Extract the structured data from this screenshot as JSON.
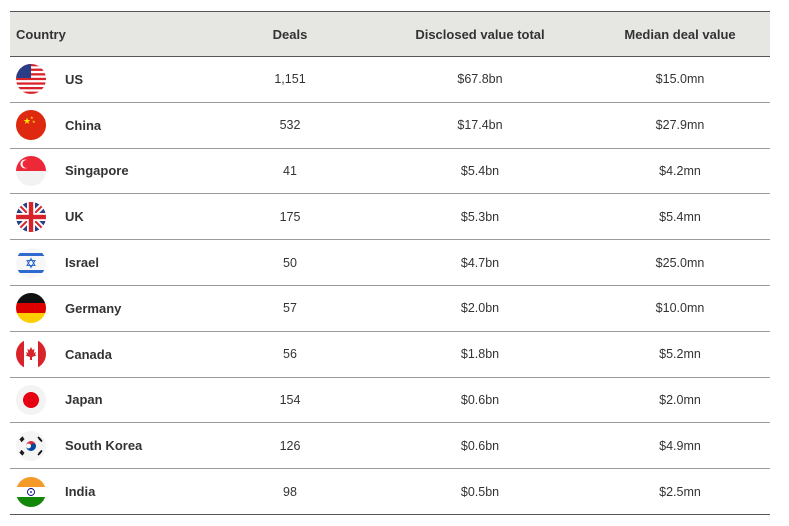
{
  "table": {
    "headers": {
      "country": "Country",
      "deals": "Deals",
      "total": "Disclosed value total",
      "median": "Median deal value"
    },
    "rows": [
      {
        "flag": "us",
        "country": "US",
        "deals": "1,151",
        "total": "$67.8bn",
        "median": "$15.0mn"
      },
      {
        "flag": "cn",
        "country": "China",
        "deals": "532",
        "total": "$17.4bn",
        "median": "$27.9mn"
      },
      {
        "flag": "sg",
        "country": "Singapore",
        "deals": "41",
        "total": "$5.4bn",
        "median": "$4.2mn"
      },
      {
        "flag": "gb",
        "country": "UK",
        "deals": "175",
        "total": "$5.3bn",
        "median": "$5.4mn"
      },
      {
        "flag": "il",
        "country": "Israel",
        "deals": "50",
        "total": "$4.7bn",
        "median": "$25.0mn"
      },
      {
        "flag": "de",
        "country": "Germany",
        "deals": "57",
        "total": "$2.0bn",
        "median": "$10.0mn"
      },
      {
        "flag": "ca",
        "country": "Canada",
        "deals": "56",
        "total": "$1.8bn",
        "median": "$5.2mn"
      },
      {
        "flag": "jp",
        "country": "Japan",
        "deals": "154",
        "total": "$0.6bn",
        "median": "$2.0mn"
      },
      {
        "flag": "kr",
        "country": "South Korea",
        "deals": "126",
        "total": "$0.6bn",
        "median": "$4.9mn"
      },
      {
        "flag": "in",
        "country": "India",
        "deals": "98",
        "total": "$0.5bn",
        "median": "$2.5mn"
      }
    ]
  },
  "colors": {
    "header_bg": "#e6e6e3",
    "red": "#d8232a",
    "blue": "#2b3d86",
    "yellow": "#ffdd00",
    "saffron": "#f39a2b",
    "green": "#138808"
  }
}
